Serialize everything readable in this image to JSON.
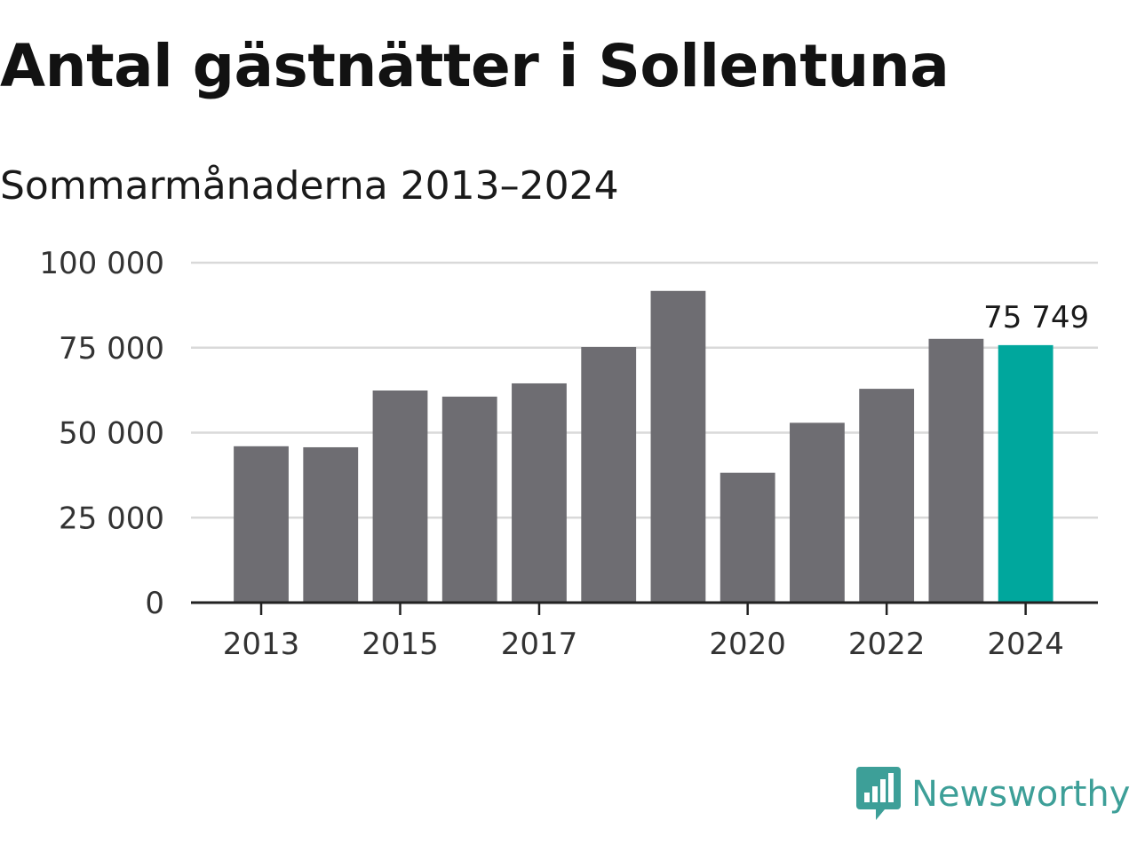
{
  "title": "Antal gästnätter i Sollentuna",
  "subtitle": "Sommarmånaderna 2013–2024",
  "brand": {
    "name": "Newsworthy",
    "icon": "bar-chart-speech-bubble-icon"
  },
  "colors": {
    "bar": "#6e6d72",
    "highlight": "#00a79d",
    "grid": "#d9d9d9",
    "axis": "#222222",
    "brand": "#3d9f98"
  },
  "chart_data": {
    "type": "bar",
    "title": "Antal gästnätter i Sollentuna",
    "subtitle": "Sommarmånaderna 2013–2024",
    "xlabel": "",
    "ylabel": "",
    "categories": [
      "2013",
      "2014",
      "2015",
      "2016",
      "2017",
      "2018",
      "2019",
      "2020",
      "2021",
      "2022",
      "2023",
      "2024"
    ],
    "values": [
      46000,
      45700,
      62400,
      60600,
      64500,
      75200,
      91700,
      38200,
      52900,
      62900,
      77600,
      75749
    ],
    "highlight_index": 11,
    "x_tick_labels": [
      "2013",
      "",
      "2015",
      "",
      "2017",
      "",
      "",
      "2020",
      "",
      "2022",
      "",
      "2024"
    ],
    "y_ticks": [
      0,
      25000,
      50000,
      75000,
      100000
    ],
    "y_tick_labels": [
      "0",
      "25 000",
      "50 000",
      "75 000",
      "100 000"
    ],
    "ylim": [
      0,
      100000
    ],
    "grid": true,
    "data_labels": [
      {
        "index": 11,
        "text": "75 749"
      }
    ]
  }
}
